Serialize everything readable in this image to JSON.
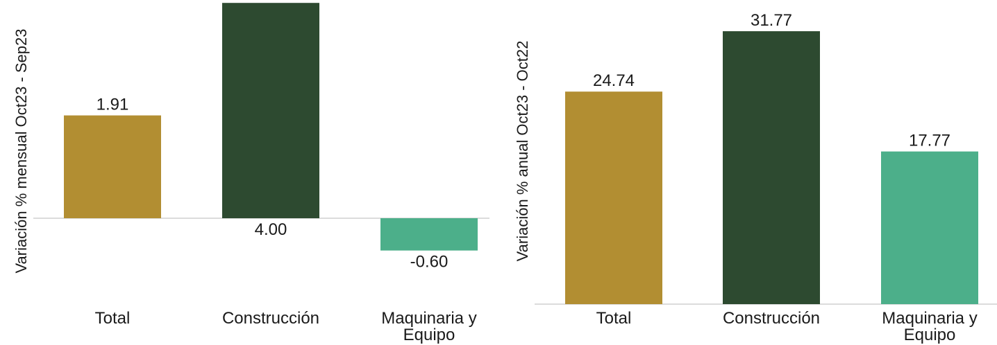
{
  "chart_data": [
    {
      "type": "bar",
      "title": "",
      "ylabel": "Variación % mensual Oct23 - Sep23",
      "xlabel": "",
      "categories": [
        "Total",
        "Construcción",
        "Maquinaria y Equipo"
      ],
      "category_lines": [
        [
          "Total"
        ],
        [
          "Construcción"
        ],
        [
          "Maquinaria y",
          "Equipo"
        ]
      ],
      "values": [
        1.91,
        4.0,
        -0.6
      ],
      "value_labels": [
        "1.91",
        "4.00",
        "-0.60"
      ],
      "colors": [
        "#b28e32",
        "#2d4a30",
        "#4caf8a"
      ]
    },
    {
      "type": "bar",
      "title": "",
      "ylabel": "Variación % anual Oct23 - Oct22",
      "xlabel": "",
      "categories": [
        "Total",
        "Construcción",
        "Maquinaria y Equipo"
      ],
      "category_lines": [
        [
          "Total"
        ],
        [
          "Construcción"
        ],
        [
          "Maquinaria y",
          "Equipo"
        ]
      ],
      "values": [
        24.74,
        31.77,
        17.77
      ],
      "value_labels": [
        "24.74",
        "31.77",
        "17.77"
      ],
      "colors": [
        "#b28e32",
        "#2d4a30",
        "#4caf8a"
      ]
    }
  ]
}
